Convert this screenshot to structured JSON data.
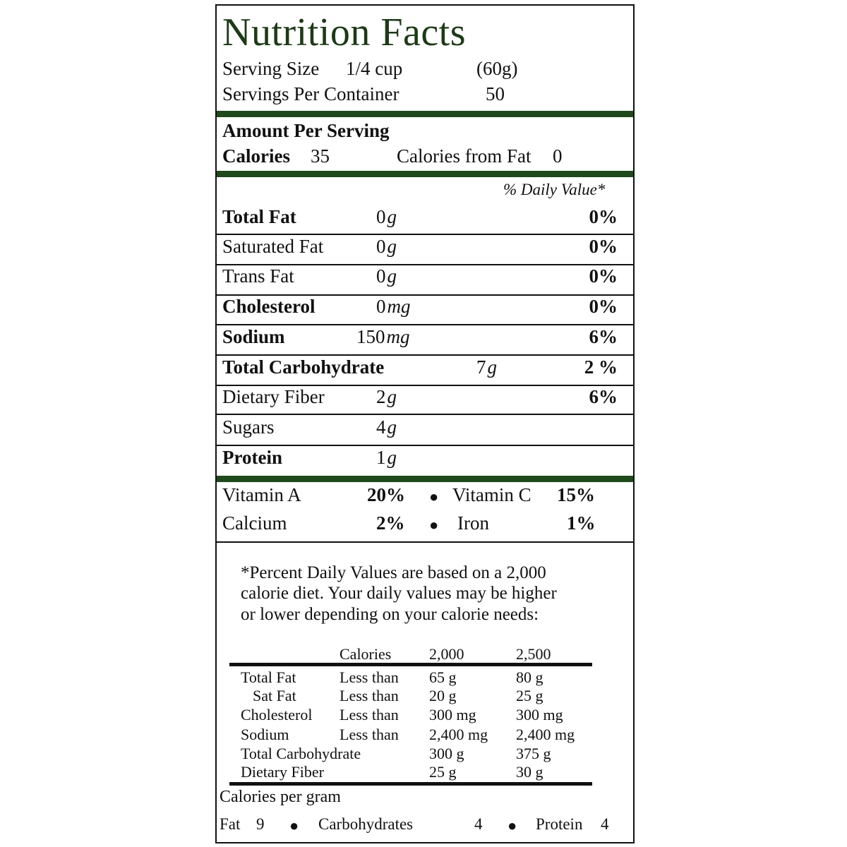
{
  "title": "Nutrition Facts",
  "serving": {
    "size_label": "Serving Size",
    "size_value": "1/4 cup",
    "size_grams": "(60g)",
    "per_container_label": "Servings Per Container",
    "per_container_value": "50"
  },
  "amount": {
    "header": "Amount Per Serving",
    "calories_label": "Calories",
    "calories_value": "35",
    "fat_cal_label": "Calories from Fat",
    "fat_cal_value": "0"
  },
  "dv_header": "% Daily Value*",
  "nutrients": [
    {
      "name": "Total Fat",
      "qty": "0",
      "unit": "g",
      "dv": "0%"
    },
    {
      "name": "Saturated Fat",
      "qty": "0",
      "unit": "g",
      "dv": "0%"
    },
    {
      "name": "Trans Fat",
      "qty": "0",
      "unit": "g",
      "dv": "0%"
    },
    {
      "name": "Cholesterol",
      "qty": "0",
      "unit": "mg",
      "dv": "0%"
    },
    {
      "name": "Sodium",
      "qty": "150",
      "unit": "mg",
      "dv": "6%"
    },
    {
      "name": "Total Carbohydrate",
      "qty": "7",
      "unit": "g",
      "dv": "2 %"
    },
    {
      "name": "Dietary Fiber",
      "qty": "2",
      "unit": "g",
      "dv": "6%"
    },
    {
      "name": "Sugars",
      "qty": "4",
      "unit": "g",
      "dv": ""
    },
    {
      "name": "Protein",
      "qty": "1",
      "unit": "g",
      "dv": ""
    }
  ],
  "vitamins": {
    "a_label": "Vitamin A",
    "a_value": "20%",
    "c_label": "Vitamin C",
    "c_value": "15%",
    "calcium_label": "Calcium",
    "calcium_value": "2%",
    "iron_label": "Iron",
    "iron_value": "1%",
    "bullet": "●"
  },
  "footnote": {
    "line1": "*Percent Daily Values are based on a 2,000",
    "line2": "calorie diet.  Your daily values may be higher",
    "line3": "or lower depending on your calorie needs:"
  },
  "dv_table": {
    "headers": [
      "Calories",
      "2,000",
      "2,500"
    ],
    "rows": [
      {
        "name": "Total Fat",
        "cond": "Less than",
        "v1": "65 g",
        "v2": "80 g"
      },
      {
        "name": "Sat Fat",
        "cond": "Less than",
        "v1": "20 g",
        "v2": "25 g"
      },
      {
        "name": "Cholesterol",
        "cond": "Less than",
        "v1": "300 mg",
        "v2": "300 mg"
      },
      {
        "name": "Sodium",
        "cond": "Less than",
        "v1": "2,400 mg",
        "v2": "2,400 mg"
      },
      {
        "name": "Total Carbohydrate",
        "cond": "",
        "v1": "300 g",
        "v2": "375 g"
      },
      {
        "name": "Dietary Fiber",
        "cond": "",
        "v1": "25 g",
        "v2": "30 g"
      }
    ]
  },
  "cal_per_gram": {
    "label": "Calories per gram",
    "fat_label": "Fat",
    "fat_value": "9",
    "carb_label": "Carbohydrates",
    "carb_value": "4",
    "protein_label": "Protein",
    "protein_value": "4",
    "bullet": "●"
  },
  "colors": {
    "title": "#1d3a16",
    "bars": "#1f4a1c",
    "text": "#111111"
  }
}
